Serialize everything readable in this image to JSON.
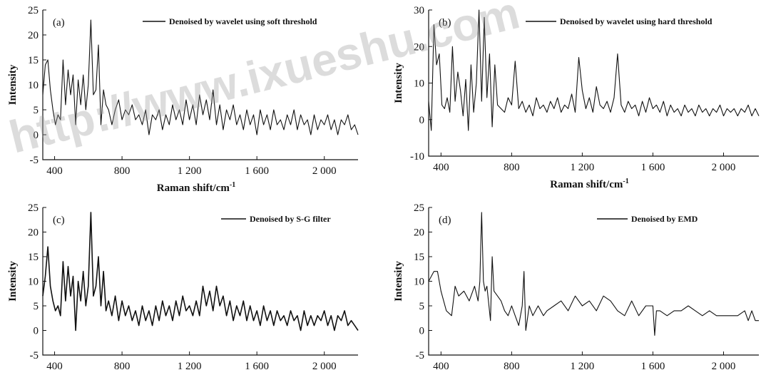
{
  "watermark": {
    "text": "http://www.ixueshu.com"
  },
  "chart_data": [
    {
      "type": "line",
      "panel_label": "(a)",
      "legend": "Denoised by wavelet using soft threshold",
      "xlabel": "Raman shift/cm",
      "xlabel_sup": "-1",
      "ylabel": "Intensity",
      "xlim": [
        330,
        2200
      ],
      "ylim": [
        -5,
        25
      ],
      "xticks": [
        400,
        800,
        1200,
        1600,
        2000
      ],
      "xtick_labels": [
        "400",
        "800",
        "1 200",
        "1 600",
        "2 000"
      ],
      "yticks": [
        -5,
        0,
        5,
        10,
        15,
        20,
        25
      ],
      "ytick_labels": [
        "-5",
        "0",
        "5",
        "10",
        "15",
        "20",
        "25"
      ],
      "x": [
        330,
        345,
        360,
        375,
        390,
        405,
        420,
        435,
        450,
        465,
        480,
        495,
        510,
        525,
        540,
        555,
        570,
        585,
        600,
        615,
        630,
        645,
        660,
        675,
        690,
        705,
        720,
        740,
        760,
        780,
        800,
        820,
        840,
        860,
        880,
        900,
        920,
        940,
        960,
        980,
        1000,
        1020,
        1040,
        1060,
        1080,
        1100,
        1120,
        1140,
        1160,
        1180,
        1200,
        1220,
        1240,
        1260,
        1280,
        1300,
        1320,
        1340,
        1360,
        1380,
        1400,
        1420,
        1440,
        1460,
        1480,
        1500,
        1520,
        1540,
        1560,
        1580,
        1600,
        1620,
        1640,
        1660,
        1680,
        1700,
        1720,
        1740,
        1760,
        1780,
        1800,
        1820,
        1840,
        1860,
        1880,
        1900,
        1920,
        1940,
        1960,
        1980,
        2000,
        2020,
        2040,
        2060,
        2080,
        2100,
        2120,
        2140,
        2160,
        2180,
        2200
      ],
      "y": [
        8,
        14,
        15,
        9,
        5,
        2,
        4,
        3,
        15,
        6,
        13,
        8,
        12,
        2,
        11,
        6,
        12,
        5,
        10,
        23,
        8,
        9,
        18,
        2,
        9,
        6,
        5,
        2,
        5,
        7,
        3,
        5,
        4,
        6,
        3,
        4,
        2,
        5,
        0,
        4,
        3,
        5,
        1,
        4,
        2,
        6,
        3,
        5,
        2,
        7,
        3,
        6,
        2,
        8,
        4,
        7,
        3,
        9,
        2,
        6,
        1,
        5,
        3,
        6,
        2,
        4,
        1,
        5,
        2,
        4,
        0,
        5,
        2,
        4,
        1,
        5,
        2,
        3,
        1,
        4,
        2,
        5,
        1,
        4,
        2,
        3,
        0,
        4,
        1,
        3,
        2,
        4,
        1,
        3,
        0,
        3,
        2,
        4,
        1,
        2,
        0
      ]
    },
    {
      "type": "line",
      "panel_label": "(b)",
      "legend": "Denoised by wavelet using hard threshold",
      "xlabel": "Raman shift/cm",
      "xlabel_sup": "-1",
      "ylabel": "Intensity",
      "xlim": [
        330,
        2200
      ],
      "ylim": [
        -10,
        30
      ],
      "xticks": [
        400,
        800,
        1200,
        1600,
        2000
      ],
      "xtick_labels": [
        "400",
        "800",
        "1 200",
        "1 600",
        "2 000"
      ],
      "yticks": [
        -10,
        0,
        10,
        20,
        30
      ],
      "ytick_labels": [
        "-10",
        "0",
        "10",
        "20",
        "30"
      ],
      "x": [
        330,
        345,
        360,
        375,
        390,
        405,
        420,
        435,
        450,
        465,
        480,
        495,
        510,
        525,
        540,
        555,
        570,
        585,
        600,
        615,
        630,
        645,
        660,
        675,
        690,
        705,
        720,
        740,
        760,
        780,
        800,
        820,
        840,
        860,
        880,
        900,
        920,
        940,
        960,
        980,
        1000,
        1020,
        1040,
        1060,
        1080,
        1100,
        1120,
        1140,
        1160,
        1180,
        1200,
        1220,
        1240,
        1260,
        1280,
        1300,
        1320,
        1340,
        1360,
        1380,
        1400,
        1420,
        1440,
        1460,
        1480,
        1500,
        1520,
        1540,
        1560,
        1580,
        1600,
        1620,
        1640,
        1660,
        1680,
        1700,
        1720,
        1740,
        1760,
        1780,
        1800,
        1820,
        1840,
        1860,
        1880,
        1900,
        1920,
        1940,
        1960,
        1980,
        2000,
        2020,
        2040,
        2060,
        2080,
        2100,
        2120,
        2140,
        2160,
        2180,
        2200
      ],
      "y": [
        5,
        -3,
        26,
        15,
        18,
        4,
        3,
        6,
        2,
        20,
        5,
        13,
        8,
        1,
        11,
        -3,
        15,
        2,
        10,
        30,
        5,
        28,
        6,
        18,
        -2,
        15,
        4,
        3,
        2,
        6,
        4,
        16,
        3,
        5,
        2,
        4,
        1,
        6,
        3,
        4,
        2,
        5,
        3,
        6,
        2,
        4,
        3,
        7,
        2,
        17,
        8,
        3,
        6,
        2,
        9,
        4,
        3,
        5,
        2,
        6,
        18,
        4,
        2,
        5,
        3,
        4,
        1,
        5,
        2,
        6,
        3,
        4,
        2,
        5,
        1,
        4,
        2,
        3,
        1,
        4,
        2,
        3,
        1,
        4,
        2,
        3,
        1,
        3,
        2,
        4,
        1,
        3,
        2,
        3,
        1,
        3,
        2,
        4,
        1,
        3,
        1
      ]
    },
    {
      "type": "line",
      "panel_label": "(c)",
      "legend": "Denoised by S-G filter",
      "xlabel": "",
      "xlabel_sup": "",
      "ylabel": "Intensity",
      "xlim": [
        330,
        2200
      ],
      "ylim": [
        -5,
        25
      ],
      "xticks": [
        400,
        800,
        1200,
        1600,
        2000
      ],
      "xtick_labels": [
        "400",
        "800",
        "1 200",
        "1 600",
        "2 000"
      ],
      "yticks": [
        -5,
        0,
        5,
        10,
        15,
        20,
        25
      ],
      "ytick_labels": [
        "-5",
        "0",
        "5",
        "10",
        "15",
        "20",
        "25"
      ],
      "x": [
        330,
        345,
        360,
        375,
        390,
        405,
        420,
        435,
        450,
        465,
        480,
        495,
        510,
        525,
        540,
        555,
        570,
        585,
        600,
        615,
        630,
        645,
        660,
        675,
        690,
        705,
        720,
        740,
        760,
        780,
        800,
        820,
        840,
        860,
        880,
        900,
        920,
        940,
        960,
        980,
        1000,
        1020,
        1040,
        1060,
        1080,
        1100,
        1120,
        1140,
        1160,
        1180,
        1200,
        1220,
        1240,
        1260,
        1280,
        1300,
        1320,
        1340,
        1360,
        1380,
        1400,
        1420,
        1440,
        1460,
        1480,
        1500,
        1520,
        1540,
        1560,
        1580,
        1600,
        1620,
        1640,
        1660,
        1680,
        1700,
        1720,
        1740,
        1760,
        1780,
        1800,
        1820,
        1840,
        1860,
        1880,
        1900,
        1920,
        1940,
        1960,
        1980,
        2000,
        2020,
        2040,
        2060,
        2080,
        2100,
        2120,
        2140,
        2160,
        2180,
        2200
      ],
      "y": [
        7,
        11,
        17,
        9,
        6,
        4,
        5,
        3,
        14,
        6,
        13,
        7,
        11,
        0,
        10,
        6,
        12,
        5,
        9,
        24,
        7,
        9,
        15,
        5,
        12,
        4,
        6,
        3,
        7,
        2,
        6,
        3,
        5,
        2,
        4,
        1,
        5,
        2,
        4,
        1,
        5,
        2,
        6,
        3,
        5,
        2,
        6,
        3,
        7,
        4,
        5,
        3,
        6,
        3,
        9,
        5,
        8,
        4,
        9,
        5,
        7,
        3,
        6,
        2,
        5,
        3,
        6,
        2,
        5,
        2,
        4,
        1,
        5,
        2,
        4,
        1,
        4,
        2,
        3,
        1,
        4,
        2,
        3,
        0,
        4,
        1,
        3,
        1,
        3,
        2,
        4,
        1,
        3,
        0,
        3,
        2,
        4,
        1,
        2,
        1,
        0
      ]
    },
    {
      "type": "line",
      "panel_label": "(d)",
      "legend": "Denoised by EMD",
      "xlabel": "",
      "xlabel_sup": "",
      "ylabel": "Intensity",
      "xlim": [
        330,
        2200
      ],
      "ylim": [
        -5,
        25
      ],
      "xticks": [
        400,
        800,
        1200,
        1600,
        2000
      ],
      "xtick_labels": [
        "400",
        "800",
        "1 200",
        "1 600",
        "2 000"
      ],
      "yticks": [
        -5,
        0,
        5,
        10,
        15,
        20,
        25
      ],
      "ytick_labels": [
        "-5",
        "0",
        "5",
        "10",
        "15",
        "20",
        "25"
      ],
      "x": [
        330,
        360,
        380,
        400,
        430,
        460,
        480,
        500,
        530,
        560,
        590,
        610,
        620,
        630,
        640,
        650,
        660,
        680,
        690,
        700,
        720,
        740,
        760,
        780,
        800,
        820,
        840,
        860,
        870,
        880,
        900,
        920,
        950,
        980,
        1000,
        1040,
        1080,
        1120,
        1160,
        1200,
        1240,
        1280,
        1320,
        1360,
        1400,
        1440,
        1480,
        1520,
        1560,
        1600,
        1610,
        1620,
        1640,
        1680,
        1720,
        1760,
        1800,
        1840,
        1880,
        1920,
        1960,
        2000,
        2040,
        2080,
        2120,
        2140,
        2160,
        2180,
        2200
      ],
      "y": [
        10,
        12,
        12,
        8,
        4,
        3,
        9,
        7,
        8,
        6,
        9,
        6,
        10,
        24,
        10,
        8,
        9,
        2,
        15,
        8,
        7,
        6,
        4,
        3,
        5,
        3,
        1,
        5,
        12,
        0,
        5,
        3,
        5,
        3,
        4,
        5,
        6,
        4,
        7,
        5,
        6,
        4,
        7,
        6,
        4,
        3,
        6,
        3,
        5,
        5,
        -1,
        4,
        4,
        3,
        4,
        4,
        5,
        4,
        3,
        4,
        3,
        3,
        3,
        3,
        4,
        2,
        4,
        2,
        2
      ]
    }
  ]
}
